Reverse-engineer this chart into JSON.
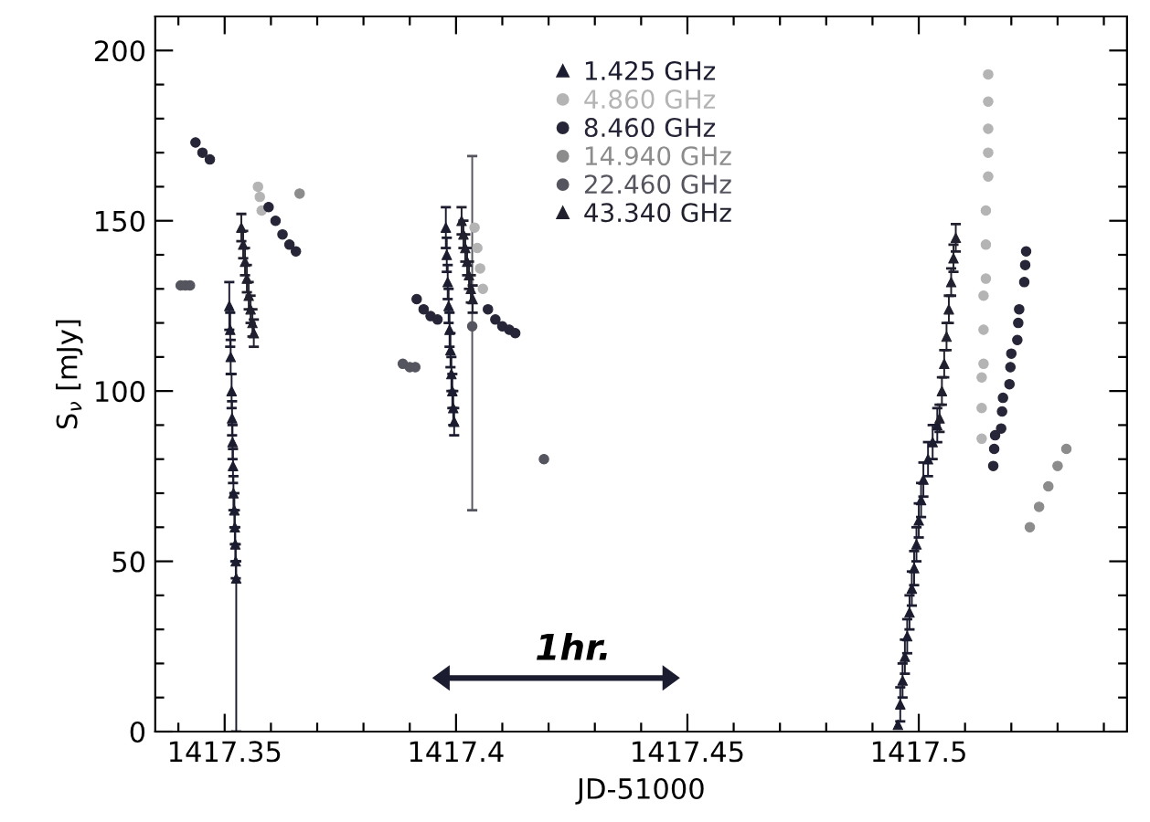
{
  "chart_data": {
    "type": "scatter",
    "xlabel": "JD-51000",
    "ylabel": "S$_{ν}$ [mJy]",
    "xlim": [
      1417.335,
      1417.545
    ],
    "ylim": [
      0,
      210
    ],
    "xticks": [
      {
        "value": 1417.34,
        "label": null
      },
      {
        "value": 1417.35,
        "label": "1417.35"
      },
      {
        "value": 1417.36,
        "label": null
      },
      {
        "value": 1417.37,
        "label": null
      },
      {
        "value": 1417.38,
        "label": null
      },
      {
        "value": 1417.39,
        "label": null
      },
      {
        "value": 1417.4,
        "label": "1417.4"
      },
      {
        "value": 1417.41,
        "label": null
      },
      {
        "value": 1417.42,
        "label": null
      },
      {
        "value": 1417.43,
        "label": null
      },
      {
        "value": 1417.44,
        "label": null
      },
      {
        "value": 1417.45,
        "label": "1417.45"
      },
      {
        "value": 1417.46,
        "label": null
      },
      {
        "value": 1417.47,
        "label": null
      },
      {
        "value": 1417.48,
        "label": null
      },
      {
        "value": 1417.49,
        "label": null
      },
      {
        "value": 1417.5,
        "label": "1417.5"
      },
      {
        "value": 1417.51,
        "label": null
      },
      {
        "value": 1417.52,
        "label": null
      },
      {
        "value": 1417.53,
        "label": null
      },
      {
        "value": 1417.54,
        "label": null
      }
    ],
    "yticks": [
      0,
      {
        "value": 10,
        "label": null
      },
      {
        "value": 20,
        "label": null
      },
      {
        "value": 30,
        "label": null
      },
      {
        "value": 40,
        "label": null
      },
      50,
      {
        "value": 60,
        "label": null
      },
      {
        "value": 70,
        "label": null
      },
      {
        "value": 80,
        "label": null
      },
      {
        "value": 90,
        "label": null
      },
      100,
      {
        "value": 110,
        "label": null
      },
      {
        "value": 120,
        "label": null
      },
      {
        "value": 130,
        "label": null
      },
      {
        "value": 140,
        "label": null
      },
      150,
      {
        "value": 160,
        "label": null
      },
      {
        "value": 170,
        "label": null
      },
      {
        "value": 180,
        "label": null
      },
      {
        "value": 190,
        "label": null
      },
      200
    ],
    "grid": false,
    "legend": "top",
    "annotations": [
      "1hr."
    ],
    "series": [
      {
        "name": "1.425 GHz",
        "color": "#1c1c30",
        "marker": "triangle",
        "x": [
          1417.351,
          1417.3512,
          1417.3513,
          1417.3515,
          1417.3516,
          1417.3517,
          1417.3518,
          1417.3519,
          1417.3521,
          1417.3522,
          1417.3523,
          1417.3524,
          1417.3525,
          1417.3978,
          1417.398,
          1417.3982,
          1417.3984,
          1417.3986,
          1417.3988,
          1417.399,
          1417.3992,
          1417.3994,
          1417.3996,
          1417.4955,
          1417.496,
          1417.4965,
          1417.497,
          1417.4975,
          1417.498,
          1417.4985,
          1417.499,
          1417.4995,
          1417.5,
          1417.5005,
          1417.501,
          1417.502,
          1417.503,
          1417.504
        ],
        "values": [
          125,
          118,
          110,
          100,
          92,
          85,
          78,
          70,
          65,
          60,
          55,
          50,
          45,
          148,
          140,
          132,
          125,
          118,
          112,
          105,
          100,
          95,
          91,
          2,
          8,
          15,
          22,
          28,
          35,
          42,
          48,
          55,
          62,
          68,
          74,
          80,
          85,
          90
        ],
        "errors": [
          7,
          5,
          5,
          5,
          5,
          5,
          5,
          5,
          5,
          5,
          5,
          5,
          [
            0,
            50
          ],
          6,
          5,
          5,
          5,
          5,
          5,
          5,
          5,
          5,
          4,
          null,
          5,
          5,
          5,
          5,
          5,
          5,
          5,
          5,
          5,
          5,
          5,
          5,
          5,
          5
        ]
      },
      {
        "name": "4.860 GHz",
        "color": "#b4b4b4",
        "marker": "circle",
        "x": [
          1417.3572,
          1417.3576,
          1417.358,
          1417.404,
          1417.4046,
          1417.4052,
          1417.4058,
          1417.515,
          1417.515,
          1417.515,
          1417.515,
          1417.515,
          1417.5145,
          1417.5145,
          1417.5145,
          1417.514,
          1417.514,
          1417.514,
          1417.5136,
          1417.5136,
          1417.5136
        ],
        "values": [
          160,
          157,
          153,
          148,
          142,
          136,
          130,
          193,
          185,
          177,
          170,
          163,
          153,
          143,
          133,
          128,
          118,
          108,
          104,
          95,
          86
        ]
      },
      {
        "name": "8.460 GHz",
        "color": "#262638",
        "marker": "circle",
        "x": [
          1417.3437,
          1417.3452,
          1417.3468,
          1417.3595,
          1417.361,
          1417.3625,
          1417.364,
          1417.3654,
          1417.3915,
          1417.393,
          1417.3945,
          1417.396,
          1417.4069,
          1417.4085,
          1417.41,
          1417.4115,
          1417.4128,
          1417.5161,
          1417.5163,
          1417.5165,
          1417.5178,
          1417.518,
          1417.5182,
          1417.5196,
          1417.5198,
          1417.52,
          1417.5213,
          1417.5215,
          1417.5217,
          1417.5228,
          1417.523,
          1417.5232
        ],
        "values": [
          173,
          170,
          168,
          154,
          150,
          146,
          143,
          141,
          127,
          124,
          122,
          121,
          124,
          121,
          119,
          118,
          117,
          78,
          83,
          87,
          89,
          94,
          98,
          102,
          107,
          111,
          115,
          120,
          124,
          132,
          137,
          141
        ]
      },
      {
        "name": "14.940 GHz",
        "color": "#8c8c8c",
        "marker": "circle",
        "x": [
          1417.3662,
          1417.524,
          1417.526,
          1417.528,
          1417.53,
          1417.5319
        ],
        "values": [
          158,
          60,
          66,
          72,
          78,
          83
        ]
      },
      {
        "name": "22.460 GHz",
        "color": "#55555f",
        "marker": "circle",
        "x": [
          1417.3405,
          1417.3415,
          1417.3425,
          1417.3885,
          1417.39,
          1417.3912,
          1417.4035,
          1417.419
        ],
        "values": [
          131,
          131,
          131,
          108,
          107,
          107,
          119,
          80
        ],
        "errors": [
          null,
          null,
          null,
          null,
          null,
          null,
          [
            65,
            169
          ],
          null
        ]
      },
      {
        "name": "43.340 GHz",
        "color": "#20202e",
        "marker": "triangle",
        "x": [
          1417.3536,
          1417.354,
          1417.3544,
          1417.3548,
          1417.3552,
          1417.3556,
          1417.356,
          1417.3563,
          1417.4012,
          1417.4016,
          1417.402,
          1417.4024,
          1417.4028,
          1417.4032,
          1417.4036,
          1417.5045,
          1417.505,
          1417.5055,
          1417.506,
          1417.5065,
          1417.507,
          1417.5075,
          1417.508
        ],
        "values": [
          148,
          143,
          138,
          133,
          128,
          124,
          120,
          117,
          150,
          146,
          142,
          138,
          134,
          130,
          127,
          92,
          100,
          108,
          116,
          124,
          132,
          139,
          145
        ],
        "errors": [
          4,
          4,
          4,
          4,
          4,
          4,
          4,
          4,
          4,
          4,
          4,
          4,
          4,
          4,
          4,
          4,
          4,
          4,
          4,
          4,
          4,
          4,
          4
        ]
      }
    ]
  }
}
